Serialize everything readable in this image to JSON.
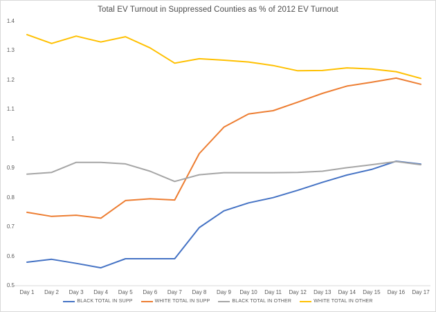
{
  "chart_data": {
    "type": "line",
    "title": "Total EV Turnout in Suppressed Counties as % of 2012 EV Turnout",
    "categories": [
      "Day 1",
      "Day 2",
      "Day 3",
      "Day 4",
      "Day 5",
      "Day 6",
      "Day 7",
      "Day 8",
      "Day 9",
      "Day 10",
      "Day 11",
      "Day 12",
      "Day 13",
      "Day 14",
      "Day 15",
      "Day 16",
      "Day 17"
    ],
    "series": [
      {
        "name": "BLACK TOTAL IN SUPP",
        "color": "#4472C4",
        "values": [
          0.58,
          0.59,
          0.576,
          0.561,
          0.592,
          0.592,
          0.592,
          0.698,
          0.755,
          0.782,
          0.8,
          0.825,
          0.852,
          0.877,
          0.896,
          0.924,
          0.914
        ]
      },
      {
        "name": "WHITE TOTAL IN SUPP",
        "color": "#ED7D31",
        "values": [
          0.75,
          0.736,
          0.74,
          0.73,
          0.79,
          0.796,
          0.792,
          0.95,
          1.04,
          1.085,
          1.096,
          1.125,
          1.155,
          1.18,
          1.193,
          1.207,
          1.186
        ]
      },
      {
        "name": "BLACK TOTAL IN OTHER",
        "color": "#A5A5A5",
        "values": [
          0.88,
          0.886,
          0.92,
          0.92,
          0.915,
          0.89,
          0.855,
          0.878,
          0.885,
          0.885,
          0.885,
          0.886,
          0.89,
          0.902,
          0.912,
          0.923,
          0.912
        ]
      },
      {
        "name": "WHITE TOTAL IN OTHER",
        "color": "#FFC000",
        "values": [
          1.355,
          1.325,
          1.35,
          1.33,
          1.348,
          1.31,
          1.258,
          1.273,
          1.268,
          1.262,
          1.25,
          1.232,
          1.233,
          1.242,
          1.238,
          1.229,
          1.206
        ]
      }
    ],
    "xlabel": "",
    "ylabel": "",
    "ylim": [
      0.5,
      1.4
    ],
    "yticks": [
      0.5,
      0.6,
      0.7,
      0.8,
      0.9,
      1,
      1.1,
      1.2,
      1.3,
      1.4
    ],
    "ytick_labels": [
      "0.5",
      "0.6",
      "0.7",
      "0.8",
      "0.9",
      "1",
      "1.1",
      "1.2",
      "1.3",
      "1.4"
    ],
    "grid": false,
    "legend_position": "bottom",
    "axis_color": "#d9d9d9",
    "label_color": "#595959",
    "title_color": "#4a4a4a"
  }
}
